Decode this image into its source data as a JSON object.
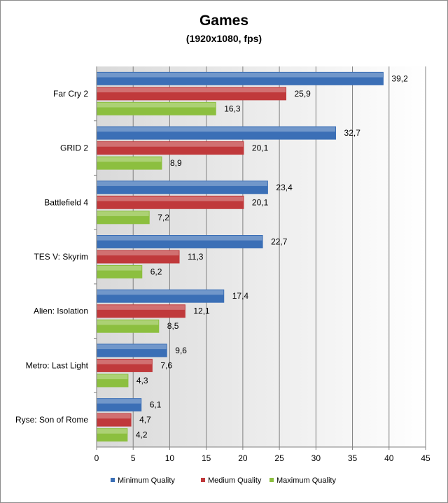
{
  "chart_data": {
    "type": "bar",
    "orientation": "horizontal",
    "title": "Games",
    "subtitle": "(1920x1080, fps)",
    "categories": [
      "Far Cry 2",
      "GRID 2",
      "Battlefield 4",
      "TES V: Skyrim",
      "Alien: Isolation",
      "Metro: Last Light",
      "Ryse: Son of Rome"
    ],
    "series": [
      {
        "name": "Minimum Quality",
        "color": "#3b6fb6",
        "values": [
          39.2,
          32.7,
          23.4,
          22.7,
          17.4,
          9.6,
          6.1
        ],
        "labels": [
          "39,2",
          "32,7",
          "23,4",
          "22,7",
          "17,4",
          "9,6",
          "6,1"
        ]
      },
      {
        "name": "Medium Quality",
        "color": "#c0393b",
        "values": [
          25.9,
          20.1,
          20.1,
          11.3,
          12.1,
          7.6,
          4.7
        ],
        "labels": [
          "25,9",
          "20,1",
          "20,1",
          "11,3",
          "12,1",
          "7,6",
          "4,7"
        ]
      },
      {
        "name": "Maximum Quality",
        "color": "#8cbf3f",
        "values": [
          16.3,
          8.9,
          7.2,
          6.2,
          8.5,
          4.3,
          4.2
        ],
        "labels": [
          "16,3",
          "8,9",
          "7,2",
          "6,2",
          "8,5",
          "4,3",
          "4,2"
        ]
      }
    ],
    "xlim": [
      0,
      45
    ],
    "xticks": [
      0,
      5,
      10,
      15,
      20,
      25,
      30,
      35,
      40,
      45
    ],
    "grid": true,
    "legend": "bottom"
  }
}
